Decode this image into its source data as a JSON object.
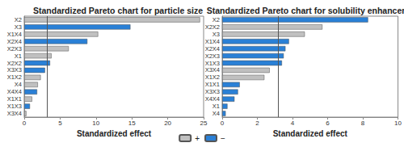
{
  "chart_data": [
    {
      "type": "bar",
      "title": "Standardized Pareto chart for particle size",
      "orientation": "horizontal",
      "grid": false,
      "legend": "bottom",
      "xlabel": "Standardized effect",
      "categories": [
        "X2",
        "X3",
        "X1X4",
        "X2X4",
        "X2X3",
        "X1",
        "X2X2",
        "X3X3",
        "X1X2",
        "X4",
        "X4X4",
        "X1X1",
        "X1X3",
        "X3X4"
      ],
      "series": [
        {
          "name": "+",
          "color": "#c0c0c0",
          "values": [
            24.5,
            null,
            10.3,
            null,
            6.2,
            3.8,
            null,
            null,
            2.3,
            1.9,
            null,
            1.1,
            null,
            0.3
          ]
        },
        {
          "name": "−",
          "color": "#2a80d6",
          "values": [
            null,
            14.8,
            null,
            8.8,
            null,
            null,
            3.6,
            2.9,
            null,
            null,
            1.8,
            null,
            0.8,
            null
          ]
        }
      ],
      "threshold": 3.18,
      "xlim": [
        0,
        25
      ],
      "xticks": [
        0,
        5,
        10,
        15,
        20,
        25
      ]
    },
    {
      "type": "bar",
      "title": "Standardized Pareto chart for solubility enhancement",
      "orientation": "horizontal",
      "grid": false,
      "legend": "bottom",
      "xlabel": "Standardized effect",
      "categories": [
        "X2",
        "X2X2",
        "X3",
        "X1X4",
        "X2X4",
        "X2X3",
        "X1X3",
        "X3X4",
        "X1X2",
        "X1X1",
        "X3X3",
        "X4X4",
        "X1",
        "X4"
      ],
      "series": [
        {
          "name": "+",
          "color": "#c0c0c0",
          "values": [
            null,
            5.7,
            4.7,
            null,
            null,
            null,
            null,
            2.7,
            2.4,
            null,
            null,
            null,
            null,
            null
          ]
        },
        {
          "name": "−",
          "color": "#2a80d6",
          "values": [
            8.3,
            null,
            null,
            3.8,
            3.6,
            3.5,
            3.4,
            null,
            null,
            1.0,
            0.9,
            0.7,
            0.3,
            0.2
          ]
        }
      ],
      "threshold": 3.18,
      "xlim": [
        0,
        10
      ],
      "xticks": [
        0,
        2,
        4,
        6,
        8,
        10
      ]
    }
  ]
}
